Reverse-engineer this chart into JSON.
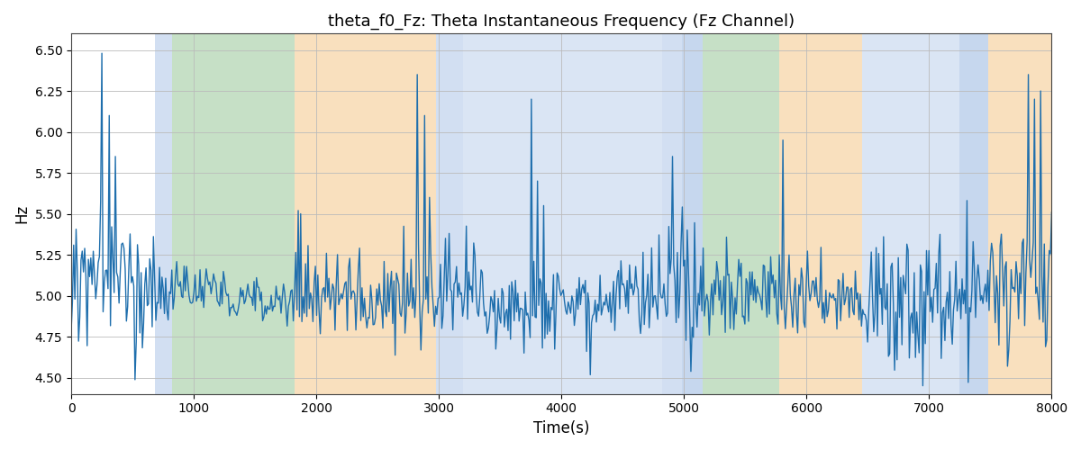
{
  "title": "theta_f0_Fz: Theta Instantaneous Frequency (Fz Channel)",
  "xlabel": "Time(s)",
  "ylabel": "Hz",
  "xlim": [
    0,
    8000
  ],
  "ylim": [
    4.4,
    6.6
  ],
  "yticks": [
    4.5,
    4.75,
    5.0,
    5.25,
    5.5,
    5.75,
    6.0,
    6.25,
    6.5
  ],
  "xticks": [
    0,
    1000,
    2000,
    3000,
    4000,
    5000,
    6000,
    7000,
    8000
  ],
  "line_color": "#1f6fad",
  "line_width": 1.0,
  "bg_color": "#ffffff",
  "grid_color": "#bbbbbb",
  "colored_bands": [
    {
      "xmin": 680,
      "xmax": 820,
      "color": "#aec6e8",
      "alpha": 0.55
    },
    {
      "xmin": 820,
      "xmax": 1820,
      "color": "#98c898",
      "alpha": 0.55
    },
    {
      "xmin": 1820,
      "xmax": 2980,
      "color": "#f5c88a",
      "alpha": 0.55
    },
    {
      "xmin": 2980,
      "xmax": 3200,
      "color": "#aec6e8",
      "alpha": 0.55
    },
    {
      "xmin": 3200,
      "xmax": 4820,
      "color": "#aec6e8",
      "alpha": 0.45
    },
    {
      "xmin": 4820,
      "xmax": 4980,
      "color": "#aec6e8",
      "alpha": 0.55
    },
    {
      "xmin": 4980,
      "xmax": 5150,
      "color": "#aec6e8",
      "alpha": 0.7
    },
    {
      "xmin": 5150,
      "xmax": 5780,
      "color": "#98c898",
      "alpha": 0.55
    },
    {
      "xmin": 5780,
      "xmax": 6450,
      "color": "#f5c88a",
      "alpha": 0.55
    },
    {
      "xmin": 6450,
      "xmax": 7250,
      "color": "#aec6e8",
      "alpha": 0.45
    },
    {
      "xmin": 7250,
      "xmax": 7480,
      "color": "#aec6e8",
      "alpha": 0.7
    },
    {
      "xmin": 7480,
      "xmax": 8000,
      "color": "#f5c88a",
      "alpha": 0.55
    }
  ],
  "seed": 12345,
  "n_points": 800,
  "base_freq": 5.0,
  "title_fontsize": 13
}
